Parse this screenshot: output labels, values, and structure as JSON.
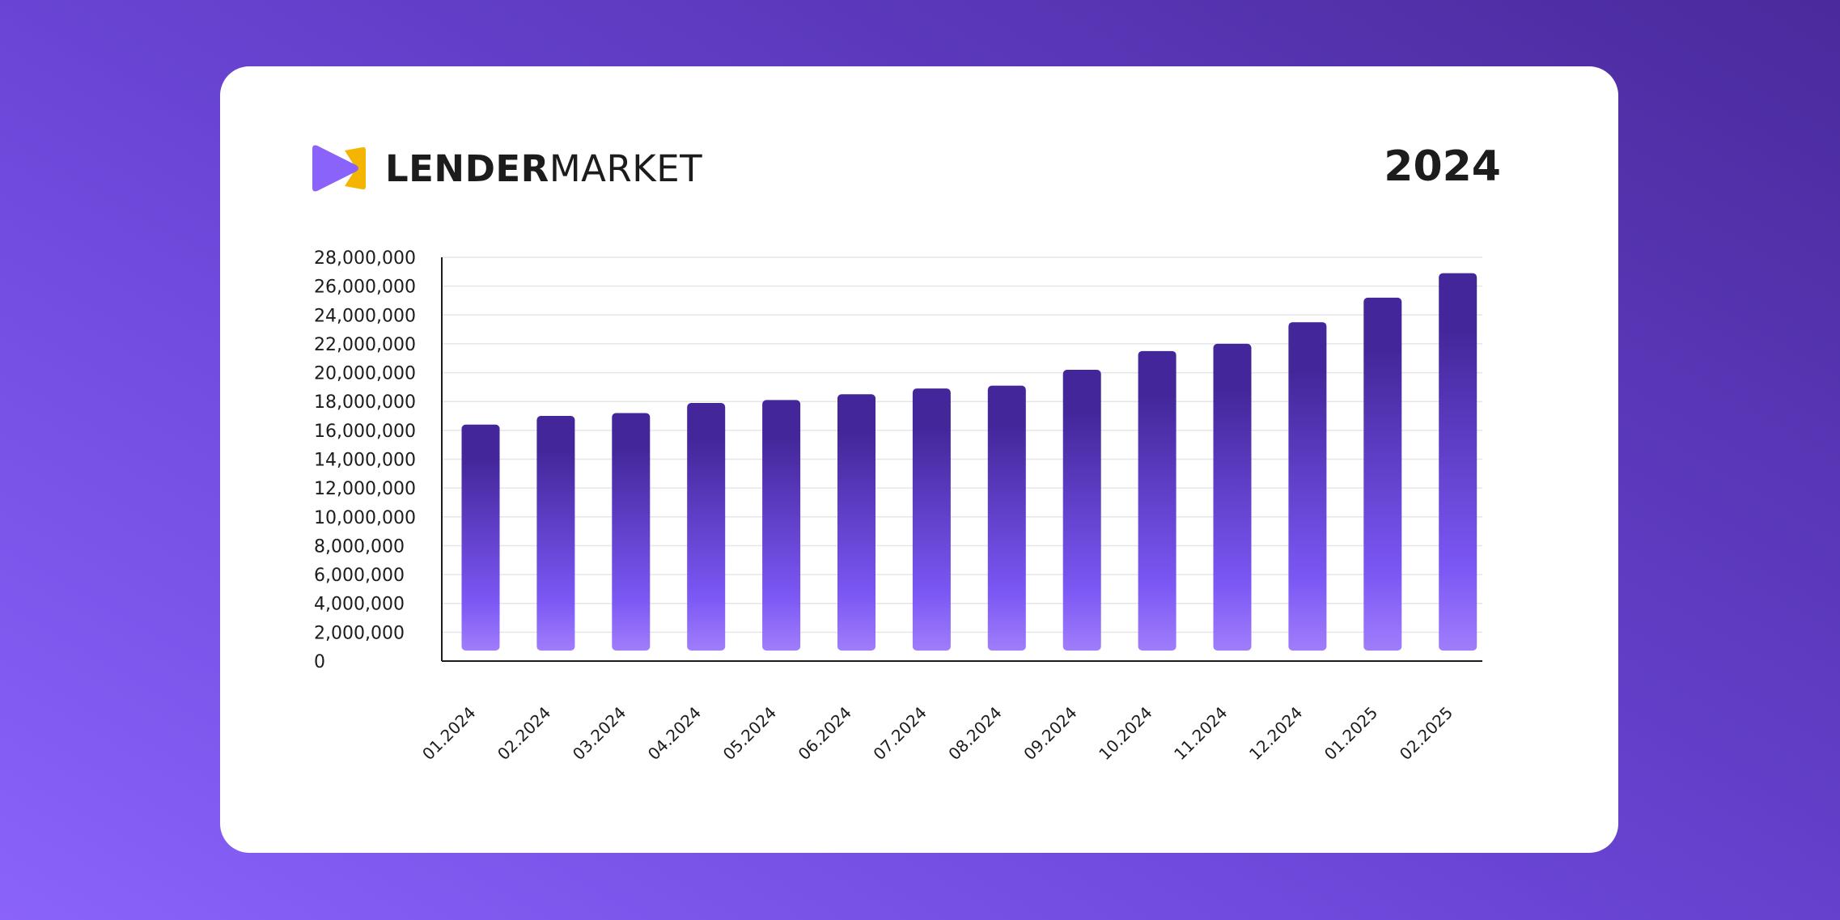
{
  "brand": {
    "name_bold": "LENDER",
    "name_regular": "MARKET"
  },
  "year_label": "2024",
  "colors": {
    "bar_top": "#43279a",
    "bar_mid": "#7b57f4",
    "bar_bottom": "#a07dfb",
    "logo_purple": "#8a63fb",
    "logo_yellow": "#f5b400"
  },
  "chart_data": {
    "type": "bar",
    "title": "",
    "xlabel": "",
    "ylabel": "",
    "ylim": [
      0,
      28000000
    ],
    "yticks": [
      0,
      2000000,
      4000000,
      6000000,
      8000000,
      10000000,
      12000000,
      14000000,
      16000000,
      18000000,
      20000000,
      22000000,
      24000000,
      26000000,
      28000000
    ],
    "ytick_labels": [
      "0",
      "2,000,000",
      "4,000,000",
      "6,000,000",
      "8,000,000",
      "10,000,000",
      "12,000,000",
      "14,000,000",
      "16,000,000",
      "18,000,000",
      "20,000,000",
      "22,000,000",
      "24,000,000",
      "26,000,000",
      "28,000,000"
    ],
    "categories": [
      "01.2024",
      "02.2024",
      "03.2024",
      "04.2024",
      "05.2024",
      "06.2024",
      "07.2024",
      "08.2024",
      "09.2024",
      "10.2024",
      "11.2024",
      "12.2024",
      "01.2025",
      "02.2025"
    ],
    "values": [
      16400000,
      17000000,
      17200000,
      17900000,
      18100000,
      18500000,
      18900000,
      19100000,
      20200000,
      21500000,
      22000000,
      23500000,
      25200000,
      26900000
    ],
    "grid": true,
    "legend": "none"
  }
}
